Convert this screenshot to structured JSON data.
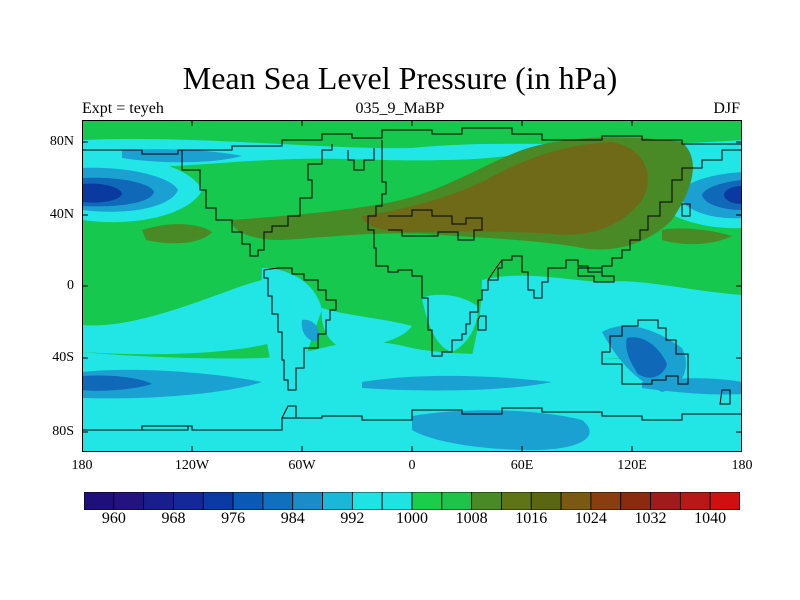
{
  "title": "Mean Sea Level Pressure (in hPa)",
  "subtitle_left": "Expt = teyeh",
  "subtitle_center": "035_9_MaBP",
  "subtitle_right": "DJF",
  "lat_labels": [
    "80N",
    "40N",
    "0",
    "40S",
    "80S"
  ],
  "lon_labels": [
    "180",
    "120W",
    "60W",
    "0",
    "60E",
    "120E",
    "180"
  ],
  "colorbar": {
    "labels": [
      "960",
      "968",
      "976",
      "984",
      "992",
      "1000",
      "1008",
      "1016",
      "1024",
      "1032",
      "1040"
    ],
    "colors": [
      "#1f0f7a",
      "#24127f",
      "#1a1d8c",
      "#14289a",
      "#0b3aa5",
      "#0a5ab5",
      "#1170be",
      "#1a8cc8",
      "#1ab8d8",
      "#1fe3e3",
      "#1fe3e3",
      "#1ccd4c",
      "#1fc34a",
      "#4a8a26",
      "#5f7416",
      "#5a6612",
      "#7a5a12",
      "#8a3e0f",
      "#8a2a0e",
      "#a01c1c",
      "#b81818",
      "#d01010"
    ]
  },
  "map": {
    "background_color": "#16c84e",
    "palette": {
      "green": "#16c84e",
      "cyan": "#22e6e6",
      "blue_light": "#1ba0d2",
      "blue": "#1068b8",
      "blue_dark": "#0a3aa0",
      "olive": "#4a8a26",
      "brown": "#6e6a18"
    }
  }
}
